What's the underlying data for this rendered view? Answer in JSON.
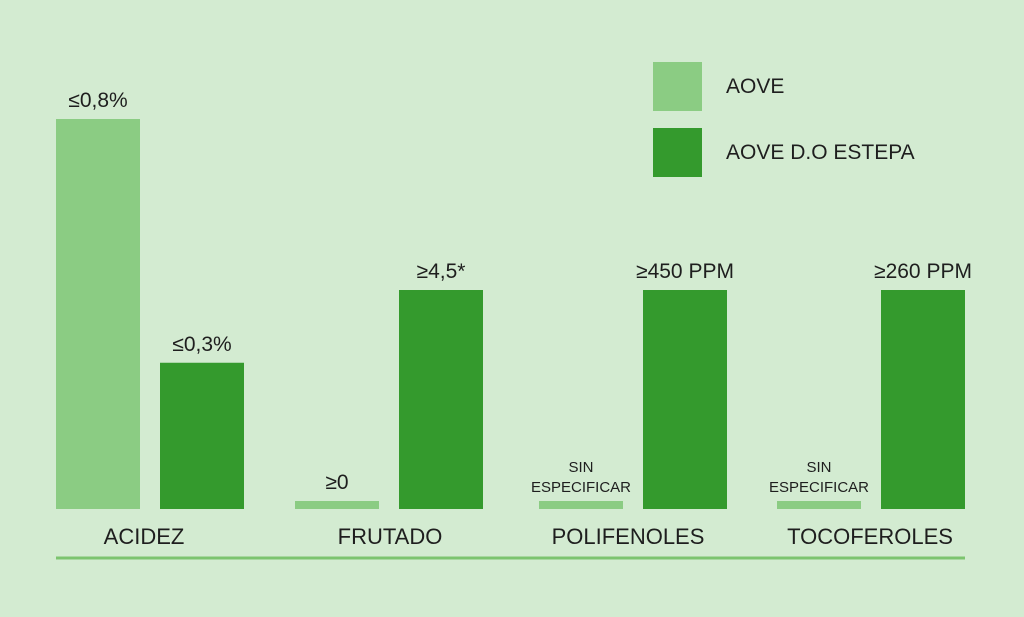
{
  "chart_data": {
    "type": "bar",
    "categories": [
      "ACIDEZ",
      "FRUTADO",
      "POLIFENOLES",
      "TOCOFEROLES"
    ],
    "series": [
      {
        "name": "AOVE",
        "color": "#8bcc83",
        "values": [
          0.8,
          0,
          null,
          null
        ],
        "data_labels": [
          "≤0,8%",
          "≥0",
          [
            "SIN",
            "ESPECIFICAR"
          ],
          [
            "SIN",
            "ESPECIFICAR"
          ]
        ]
      },
      {
        "name": "AOVE D.O ESTEPA",
        "color": "#349a2d",
        "values": [
          0.3,
          4.5,
          450,
          260
        ],
        "data_labels": [
          "≤0,3%",
          "≥4,5*",
          "≥450 PPM",
          "≥260 PPM"
        ]
      }
    ],
    "legend_position": "top-right",
    "grid": false
  },
  "colors": {
    "background": "#d3ebd1",
    "baseline": "#7cc46f"
  }
}
